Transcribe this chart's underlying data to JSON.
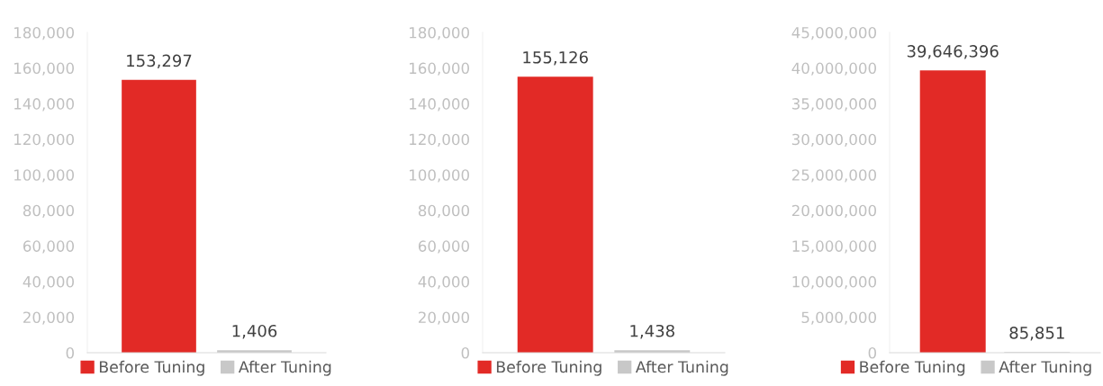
{
  "chart_data": [
    {
      "type": "bar",
      "categories": [
        null
      ],
      "legend": "bottom",
      "series": [
        {
          "name": "Before Tuning",
          "color": "#e22a26",
          "values": [
            153297
          ],
          "value_labels": [
            "153,297"
          ]
        },
        {
          "name": "After Tuning",
          "color": "#c8c8c8",
          "values": [
            1406
          ],
          "value_labels": [
            "1,406"
          ]
        }
      ],
      "ylim": [
        0,
        180000
      ],
      "yticks": [
        0,
        {
          "value": 20000,
          "label": "20,000"
        },
        {
          "value": 40000,
          "label": "40,000"
        },
        {
          "value": 60000,
          "label": "60,000"
        },
        {
          "value": 80000,
          "label": "80,000"
        },
        {
          "value": 100000,
          "label": "100,000"
        },
        {
          "value": 120000,
          "label": "120,000"
        },
        {
          "value": 140000,
          "label": "140,000"
        },
        {
          "value": 160000,
          "label": "160,000"
        },
        {
          "value": 180000,
          "label": "180,000"
        }
      ]
    },
    {
      "type": "bar",
      "categories": [
        null
      ],
      "legend": "bottom",
      "series": [
        {
          "name": "Before Tuning",
          "color": "#e22a26",
          "values": [
            155126
          ],
          "value_labels": [
            "155,126"
          ]
        },
        {
          "name": "After Tuning",
          "color": "#c8c8c8",
          "values": [
            1438
          ],
          "value_labels": [
            "1,438"
          ]
        }
      ],
      "ylim": [
        0,
        180000
      ],
      "yticks": [
        0,
        {
          "value": 20000,
          "label": "20,000"
        },
        {
          "value": 40000,
          "label": "40,000"
        },
        {
          "value": 60000,
          "label": "60,000"
        },
        {
          "value": 80000,
          "label": "80,000"
        },
        {
          "value": 100000,
          "label": "100,000"
        },
        {
          "value": 120000,
          "label": "120,000"
        },
        {
          "value": 140000,
          "label": "140,000"
        },
        {
          "value": 160000,
          "label": "160,000"
        },
        {
          "value": 180000,
          "label": "180,000"
        }
      ]
    },
    {
      "type": "bar",
      "categories": [
        null
      ],
      "legend": "bottom",
      "series": [
        {
          "name": "Before Tuning",
          "color": "#e22a26",
          "values": [
            39646396
          ],
          "value_labels": [
            "39,646,396"
          ]
        },
        {
          "name": "After Tuning",
          "color": "#c8c8c8",
          "values": [
            85851
          ],
          "value_labels": [
            "85,851"
          ]
        }
      ],
      "ylim": [
        0,
        45000000
      ],
      "yticks": [
        0,
        {
          "value": 5000000,
          "label": "5,000,000"
        },
        {
          "value": 10000000,
          "label": "10,000,000"
        },
        {
          "value": 15000000,
          "label": "15,000,000"
        },
        {
          "value": 20000000,
          "label": "20,000,000"
        },
        {
          "value": 25000000,
          "label": "25,000,000"
        },
        {
          "value": 30000000,
          "label": "30,000,000"
        },
        {
          "value": 35000000,
          "label": "35,000,000"
        },
        {
          "value": 40000000,
          "label": "40,000,000"
        },
        {
          "value": 45000000,
          "label": "45,000,000"
        }
      ]
    }
  ]
}
